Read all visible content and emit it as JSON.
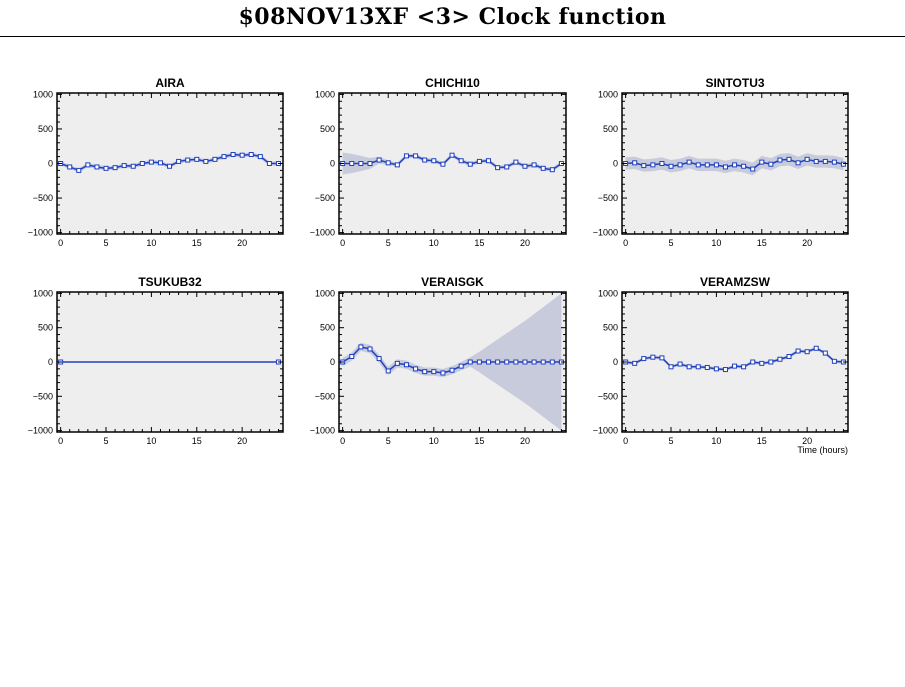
{
  "title": "$08NOV13XF <3>  Clock function",
  "colors": {
    "plot_bg": "#eeeeee",
    "band": "#c8cbdc",
    "line": "#2040c0",
    "marker_fill": "#ffffff"
  },
  "chart_data": [
    {
      "type": "line",
      "title": "AIRA",
      "xlabel": "",
      "xlim": [
        -0.4,
        24.5
      ],
      "ylim": [
        -1020,
        1020
      ],
      "xticks": [
        0,
        5,
        10,
        15,
        20
      ],
      "yticks": [
        1000,
        500,
        0,
        -500,
        -1000
      ],
      "grid": false,
      "x": [
        0,
        1,
        2,
        3,
        4,
        5,
        6,
        7,
        8,
        9,
        10,
        11,
        12,
        13,
        14,
        15,
        16,
        17,
        18,
        19,
        20,
        21,
        22,
        23,
        24
      ],
      "y": [
        0,
        -50,
        -100,
        -20,
        -50,
        -70,
        -60,
        -30,
        -40,
        0,
        20,
        10,
        -40,
        30,
        50,
        60,
        30,
        60,
        100,
        130,
        120,
        130,
        100,
        0,
        0
      ],
      "err": [
        30,
        30,
        30,
        30,
        30,
        30,
        30,
        30,
        30,
        30,
        30,
        30,
        30,
        30,
        30,
        30,
        30,
        30,
        30,
        30,
        30,
        30,
        30,
        30,
        30
      ]
    },
    {
      "type": "line",
      "title": "CHICHI10",
      "xlabel": "",
      "xlim": [
        -0.4,
        24.5
      ],
      "ylim": [
        -1020,
        1020
      ],
      "xticks": [
        0,
        5,
        10,
        15,
        20
      ],
      "yticks": [
        1000,
        500,
        0,
        -500,
        -1000
      ],
      "grid": false,
      "x": [
        0,
        1,
        2,
        3,
        4,
        5,
        6,
        7,
        8,
        9,
        10,
        11,
        12,
        13,
        14,
        15,
        16,
        17,
        18,
        19,
        20,
        21,
        22,
        23,
        24
      ],
      "y": [
        0,
        0,
        0,
        0,
        50,
        10,
        -20,
        110,
        110,
        50,
        40,
        -10,
        120,
        40,
        -10,
        30,
        40,
        -60,
        -50,
        20,
        -40,
        -20,
        -70,
        -90,
        0
      ],
      "err": [
        160,
        140,
        110,
        80,
        50,
        35,
        30,
        30,
        30,
        30,
        30,
        30,
        30,
        30,
        30,
        30,
        30,
        30,
        30,
        30,
        30,
        30,
        30,
        30,
        30
      ]
    },
    {
      "type": "line",
      "title": "SINTOTU3",
      "xlabel": "",
      "xlim": [
        -0.4,
        24.5
      ],
      "ylim": [
        -1020,
        1020
      ],
      "xticks": [
        0,
        5,
        10,
        15,
        20
      ],
      "yticks": [
        1000,
        500,
        0,
        -500,
        -1000
      ],
      "grid": false,
      "x": [
        0,
        1,
        2,
        3,
        4,
        5,
        6,
        7,
        8,
        9,
        10,
        11,
        12,
        13,
        14,
        15,
        16,
        17,
        18,
        19,
        20,
        21,
        22,
        23,
        24
      ],
      "y": [
        0,
        10,
        -30,
        -20,
        0,
        -40,
        -20,
        20,
        -20,
        -20,
        -20,
        -50,
        -20,
        -40,
        -80,
        20,
        -10,
        50,
        60,
        10,
        60,
        30,
        30,
        20,
        -10
      ],
      "err": [
        90,
        90,
        90,
        90,
        90,
        90,
        90,
        90,
        90,
        90,
        90,
        90,
        90,
        90,
        90,
        90,
        90,
        90,
        90,
        90,
        90,
        90,
        90,
        90,
        90
      ]
    },
    {
      "type": "line",
      "title": "TSUKUB32",
      "xlabel": "",
      "xlim": [
        -0.4,
        24.5
      ],
      "ylim": [
        -1020,
        1020
      ],
      "xticks": [
        0,
        5,
        10,
        15,
        20
      ],
      "yticks": [
        1000,
        500,
        0,
        -500,
        -1000
      ],
      "grid": false,
      "x": [
        0,
        24
      ],
      "y": [
        0,
        0
      ],
      "err": [
        0,
        0
      ]
    },
    {
      "type": "line",
      "title": "VERAISGK",
      "xlabel": "",
      "xlim": [
        -0.4,
        24.5
      ],
      "ylim": [
        -1020,
        1020
      ],
      "xticks": [
        0,
        5,
        10,
        15,
        20
      ],
      "yticks": [
        1000,
        500,
        0,
        -500,
        -1000
      ],
      "grid": false,
      "x": [
        0,
        1,
        2,
        3,
        4,
        5,
        6,
        7,
        8,
        9,
        10,
        11,
        12,
        13,
        14,
        15,
        16,
        17,
        18,
        19,
        20,
        21,
        22,
        23,
        24
      ],
      "y": [
        0,
        80,
        220,
        190,
        50,
        -130,
        -20,
        -40,
        -100,
        -140,
        -140,
        -160,
        -120,
        -60,
        0,
        0,
        0,
        0,
        0,
        0,
        0,
        0,
        0,
        0,
        0
      ],
      "err": [
        60,
        60,
        60,
        60,
        60,
        60,
        60,
        60,
        60,
        60,
        60,
        60,
        60,
        60,
        70,
        150,
        240,
        330,
        420,
        510,
        600,
        700,
        800,
        900,
        1000
      ]
    },
    {
      "type": "line",
      "title": "VERAMZSW",
      "xlabel": "Time (hours)",
      "xlim": [
        -0.4,
        24.5
      ],
      "ylim": [
        -1020,
        1020
      ],
      "xticks": [
        0,
        5,
        10,
        15,
        20
      ],
      "yticks": [
        1000,
        500,
        0,
        -500,
        -1000
      ],
      "grid": false,
      "x": [
        0,
        1,
        2,
        3,
        4,
        5,
        6,
        7,
        8,
        9,
        10,
        11,
        12,
        13,
        14,
        15,
        16,
        17,
        18,
        19,
        20,
        21,
        22,
        23,
        24
      ],
      "y": [
        0,
        -20,
        50,
        70,
        60,
        -70,
        -30,
        -70,
        -70,
        -80,
        -100,
        -110,
        -60,
        -70,
        0,
        -20,
        0,
        40,
        80,
        160,
        150,
        200,
        130,
        10,
        0
      ],
      "err": [
        25,
        25,
        25,
        25,
        25,
        25,
        25,
        25,
        25,
        25,
        25,
        25,
        25,
        25,
        25,
        25,
        25,
        25,
        25,
        25,
        25,
        25,
        25,
        25,
        25
      ]
    }
  ]
}
